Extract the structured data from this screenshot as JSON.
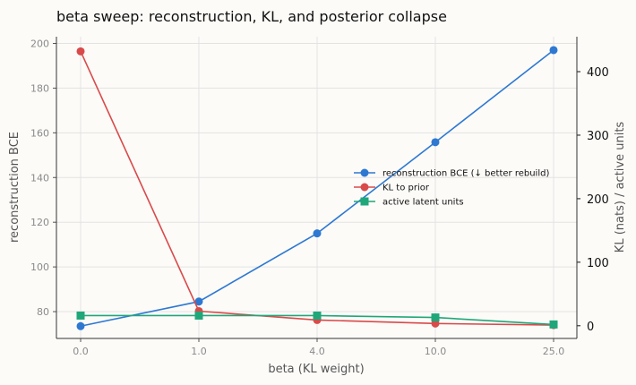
{
  "chart_data": {
    "type": "line",
    "title": "beta sweep: reconstruction, KL, and posterior collapse",
    "xlabel": "beta (KL weight)",
    "ylabel_left": "reconstruction BCE",
    "ylabel_right": "KL (nats)  /  active units",
    "categories": [
      "0.0",
      "1.0",
      "4.0",
      "10.0",
      "25.0"
    ],
    "ylim_left": [
      68,
      203
    ],
    "yticks_left": [
      80,
      100,
      120,
      140,
      160,
      180,
      200
    ],
    "ylim_right": [
      -20,
      455
    ],
    "yticks_right": [
      0,
      100,
      200,
      300,
      400
    ],
    "grid": true,
    "legend_position": "center-right",
    "series": [
      {
        "name": "reconstruction BCE (↓ better rebuild)",
        "axis": "left",
        "marker": "circle",
        "color": "#2e78d2",
        "values": [
          73.5,
          84.5,
          115,
          155.8,
          197
        ]
      },
      {
        "name": "KL to prior",
        "axis": "right",
        "marker": "circle",
        "color": "#d94a4a",
        "values": [
          432,
          23,
          9,
          3.5,
          1
        ]
      },
      {
        "name": "active latent units",
        "axis": "right",
        "marker": "square",
        "color": "#1fa77a",
        "values": [
          16,
          16,
          16,
          13,
          2
        ]
      }
    ]
  }
}
